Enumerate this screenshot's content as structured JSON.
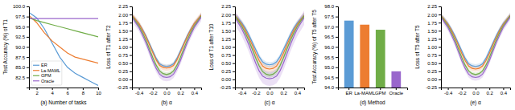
{
  "chart_data": [
    {
      "type": "line",
      "xlabel": "(a) Number of tasks",
      "ylabel": "Test Accuracy (%) of T1",
      "x": [
        1,
        2,
        3,
        4,
        5,
        6,
        7,
        8,
        9,
        10
      ],
      "xlim": [
        1,
        10
      ],
      "ylim": [
        80.0,
        100.0
      ],
      "xticks": [
        2,
        4,
        6,
        8,
        10
      ],
      "yticks": [
        82.5,
        {
          "value": 85.0,
          "label": "85.0"
        },
        87.5,
        {
          "value": 90.0,
          "label": "90.0"
        },
        92.5,
        {
          "value": 95.0,
          "label": "95.0"
        },
        97.5,
        {
          "value": 100.0,
          "label": "100.0"
        }
      ],
      "legend": "lower left",
      "series": [
        {
          "name": "ER",
          "color": "#5B9BD5",
          "values": [
            98.5,
            97.2,
            94.5,
            91.0,
            87.5,
            85.0,
            83.5,
            82.5,
            81.5,
            80.5
          ]
        },
        {
          "name": "La-MAML",
          "color": "#ED7D31",
          "values": [
            97.8,
            96.0,
            93.5,
            91.5,
            90.0,
            88.5,
            87.5,
            87.0,
            86.5,
            86.0
          ]
        },
        {
          "name": "GPM",
          "color": "#70AD47",
          "values": [
            97.2,
            96.5,
            96.0,
            95.5,
            95.0,
            94.5,
            94.0,
            93.5,
            93.0,
            92.5
          ]
        },
        {
          "name": "Oracle",
          "color": "#9966CC",
          "values": [
            97.0,
            97.0,
            97.0,
            97.0,
            97.0,
            97.0,
            97.0,
            97.0,
            97.0,
            97.0
          ]
        }
      ]
    },
    {
      "type": "line",
      "xlabel": "(b) α",
      "ylabel": "Loss of T1 after T2",
      "x": [
        -0.5,
        -0.45,
        -0.4,
        -0.35,
        -0.3,
        -0.25,
        -0.2,
        -0.15,
        -0.1,
        -0.05,
        0.0,
        0.05,
        0.1,
        0.15,
        0.2,
        0.25,
        0.3,
        0.35,
        0.4,
        0.45,
        0.5
      ],
      "xlim": [
        -0.5,
        0.5
      ],
      "ylim": [
        -0.25,
        2.25
      ],
      "xticks": [
        -0.4,
        -0.2,
        {
          "value": 0.0,
          "label": "0.0"
        },
        0.2,
        0.4
      ],
      "yticks": [
        -0.25,
        {
          "value": 0.0,
          "label": "0.00"
        },
        0.25,
        {
          "value": 0.5,
          "label": "0.50"
        },
        0.75,
        {
          "value": 1.0,
          "label": "1.00"
        },
        1.25,
        {
          "value": 1.5,
          "label": "1.50"
        },
        1.75,
        {
          "value": 2.0,
          "label": "2.00"
        },
        2.25
      ],
      "series": [
        {
          "color": "#5B9BD5",
          "values": [
            1.98,
            1.85,
            1.72,
            1.55,
            1.35,
            1.12,
            0.88,
            0.65,
            0.48,
            0.42,
            0.4,
            0.42,
            0.48,
            0.65,
            0.88,
            1.12,
            1.35,
            1.55,
            1.72,
            1.85,
            1.98
          ],
          "std": [
            0.06,
            0.06,
            0.06,
            0.06,
            0.06,
            0.06,
            0.06,
            0.06,
            0.06,
            0.06,
            0.06,
            0.06,
            0.06,
            0.06,
            0.06,
            0.06,
            0.06,
            0.06,
            0.06,
            0.06,
            0.06
          ]
        },
        {
          "color": "#ED7D31",
          "values": [
            1.98,
            1.85,
            1.72,
            1.53,
            1.32,
            1.08,
            0.83,
            0.6,
            0.43,
            0.37,
            0.35,
            0.37,
            0.43,
            0.6,
            0.83,
            1.08,
            1.32,
            1.53,
            1.72,
            1.85,
            1.98
          ],
          "std": [
            0.09,
            0.09,
            0.09,
            0.09,
            0.09,
            0.09,
            0.09,
            0.09,
            0.09,
            0.09,
            0.09,
            0.09,
            0.09,
            0.09,
            0.09,
            0.09,
            0.09,
            0.09,
            0.09,
            0.09,
            0.09
          ]
        },
        {
          "color": "#70AD47",
          "values": [
            1.95,
            1.8,
            1.65,
            1.45,
            1.22,
            0.95,
            0.68,
            0.44,
            0.26,
            0.18,
            0.15,
            0.18,
            0.26,
            0.44,
            0.68,
            0.95,
            1.22,
            1.45,
            1.65,
            1.8,
            1.95
          ],
          "std": [
            0.07,
            0.07,
            0.07,
            0.07,
            0.07,
            0.07,
            0.07,
            0.07,
            0.07,
            0.07,
            0.07,
            0.07,
            0.07,
            0.07,
            0.07,
            0.07,
            0.07,
            0.07,
            0.07,
            0.07,
            0.07
          ]
        },
        {
          "color": "#9966CC",
          "values": [
            1.92,
            1.76,
            1.6,
            1.38,
            1.14,
            0.86,
            0.58,
            0.34,
            0.16,
            0.08,
            0.06,
            0.08,
            0.16,
            0.34,
            0.58,
            0.86,
            1.14,
            1.38,
            1.6,
            1.76,
            1.92
          ],
          "std": [
            0.12,
            0.12,
            0.12,
            0.12,
            0.12,
            0.12,
            0.12,
            0.12,
            0.12,
            0.12,
            0.12,
            0.12,
            0.12,
            0.12,
            0.12,
            0.12,
            0.12,
            0.12,
            0.12,
            0.12,
            0.12
          ]
        }
      ]
    },
    {
      "type": "line",
      "xlabel": "(c) α",
      "ylabel": "Loss of T1 after T10",
      "x": [
        -0.5,
        -0.45,
        -0.4,
        -0.35,
        -0.3,
        -0.25,
        -0.2,
        -0.15,
        -0.1,
        -0.05,
        0.0,
        0.05,
        0.1,
        0.15,
        0.2,
        0.25,
        0.3,
        0.35,
        0.4,
        0.45,
        0.5
      ],
      "xlim": [
        -0.5,
        0.5
      ],
      "ylim": [
        -0.25,
        2.25
      ],
      "xticks": [
        -0.4,
        -0.2,
        {
          "value": 0.0,
          "label": "0.0"
        },
        0.2,
        0.4
      ],
      "yticks": [
        -0.25,
        {
          "value": 0.0,
          "label": "0.00"
        },
        0.25,
        {
          "value": 0.5,
          "label": "0.50"
        },
        0.75,
        {
          "value": 1.0,
          "label": "1.00"
        },
        1.25,
        {
          "value": 1.5,
          "label": "1.50"
        },
        1.75,
        {
          "value": 2.0,
          "label": "2.00"
        },
        2.25
      ],
      "series": [
        {
          "color": "#5B9BD5",
          "values": [
            1.98,
            1.86,
            1.74,
            1.58,
            1.38,
            1.15,
            0.92,
            0.7,
            0.54,
            0.47,
            0.45,
            0.47,
            0.54,
            0.7,
            0.92,
            1.15,
            1.38,
            1.58,
            1.74,
            1.86,
            1.98
          ],
          "std": [
            0.08,
            0.08,
            0.08,
            0.08,
            0.08,
            0.08,
            0.08,
            0.08,
            0.08,
            0.08,
            0.08,
            0.08,
            0.08,
            0.08,
            0.08,
            0.08,
            0.08,
            0.08,
            0.08,
            0.08,
            0.08
          ]
        },
        {
          "color": "#ED7D31",
          "values": [
            1.97,
            1.84,
            1.7,
            1.52,
            1.3,
            1.06,
            0.8,
            0.58,
            0.41,
            0.34,
            0.32,
            0.34,
            0.41,
            0.58,
            0.8,
            1.06,
            1.3,
            1.52,
            1.7,
            1.84,
            1.97
          ],
          "std": [
            0.1,
            0.1,
            0.1,
            0.1,
            0.1,
            0.1,
            0.1,
            0.1,
            0.1,
            0.1,
            0.1,
            0.1,
            0.1,
            0.1,
            0.1,
            0.1,
            0.1,
            0.1,
            0.1,
            0.1,
            0.1
          ]
        },
        {
          "color": "#70AD47",
          "values": [
            1.95,
            1.8,
            1.63,
            1.43,
            1.2,
            0.93,
            0.66,
            0.42,
            0.24,
            0.16,
            0.13,
            0.16,
            0.24,
            0.42,
            0.66,
            0.93,
            1.2,
            1.43,
            1.63,
            1.8,
            1.95
          ],
          "std": [
            0.08,
            0.08,
            0.08,
            0.08,
            0.08,
            0.08,
            0.08,
            0.08,
            0.08,
            0.08,
            0.08,
            0.08,
            0.08,
            0.08,
            0.08,
            0.08,
            0.08,
            0.08,
            0.08,
            0.08,
            0.08
          ]
        },
        {
          "color": "#9966CC",
          "values": [
            1.9,
            1.73,
            1.55,
            1.32,
            1.07,
            0.78,
            0.5,
            0.26,
            0.1,
            0.04,
            0.02,
            0.04,
            0.1,
            0.26,
            0.5,
            0.78,
            1.07,
            1.32,
            1.55,
            1.73,
            1.9
          ],
          "std": [
            0.22,
            0.22,
            0.22,
            0.22,
            0.22,
            0.22,
            0.22,
            0.22,
            0.22,
            0.22,
            0.22,
            0.22,
            0.22,
            0.22,
            0.22,
            0.22,
            0.22,
            0.22,
            0.22,
            0.22,
            0.22
          ]
        }
      ]
    },
    {
      "type": "bar",
      "xlabel": "(d) Method",
      "ylabel": "Test Accuracy (%) of T5 after T5",
      "categories": [
        "ER",
        "La-MAML",
        "GPM",
        "Oracle"
      ],
      "values": [
        97.3,
        97.1,
        96.85,
        94.8
      ],
      "colors": [
        "#5B9BD5",
        "#ED7D31",
        "#70AD47",
        "#9966CC"
      ],
      "ylim": [
        94.0,
        98.0
      ],
      "yticks": [
        {
          "value": 94.0,
          "label": "94.0"
        },
        94.5,
        {
          "value": 95.0,
          "label": "95.0"
        },
        95.5,
        {
          "value": 96.0,
          "label": "96.0"
        },
        96.5,
        {
          "value": 97.0,
          "label": "97.0"
        },
        97.5,
        {
          "value": 98.0,
          "label": "98.0"
        }
      ]
    },
    {
      "type": "line",
      "xlabel": "(e) α",
      "ylabel": "Loss of T5 after T5",
      "x": [
        -0.5,
        -0.45,
        -0.4,
        -0.35,
        -0.3,
        -0.25,
        -0.2,
        -0.15,
        -0.1,
        -0.05,
        0.0,
        0.05,
        0.1,
        0.15,
        0.2,
        0.25,
        0.3,
        0.35,
        0.4,
        0.45,
        0.5
      ],
      "xlim": [
        -0.5,
        0.5
      ],
      "ylim": [
        -0.25,
        2.25
      ],
      "xticks": [
        -0.4,
        -0.2,
        {
          "value": 0.0,
          "label": "0.0"
        },
        0.2,
        0.4
      ],
      "yticks": [
        -0.25,
        {
          "value": 0.0,
          "label": "0.00"
        },
        0.25,
        {
          "value": 0.5,
          "label": "0.50"
        },
        0.75,
        {
          "value": 1.0,
          "label": "1.00"
        },
        1.25,
        {
          "value": 1.5,
          "label": "1.50"
        },
        1.75,
        {
          "value": 2.0,
          "label": "2.00"
        },
        2.25
      ],
      "series": [
        {
          "color": "#5B9BD5",
          "values": [
            1.98,
            1.85,
            1.72,
            1.55,
            1.35,
            1.12,
            0.88,
            0.65,
            0.48,
            0.42,
            0.4,
            0.42,
            0.48,
            0.65,
            0.88,
            1.12,
            1.35,
            1.55,
            1.72,
            1.85,
            1.98
          ],
          "std": [
            0.07,
            0.07,
            0.07,
            0.07,
            0.07,
            0.07,
            0.07,
            0.07,
            0.07,
            0.07,
            0.07,
            0.07,
            0.07,
            0.07,
            0.07,
            0.07,
            0.07,
            0.07,
            0.07,
            0.07,
            0.07
          ]
        },
        {
          "color": "#ED7D31",
          "values": [
            1.97,
            1.84,
            1.7,
            1.52,
            1.3,
            1.06,
            0.8,
            0.58,
            0.41,
            0.34,
            0.32,
            0.34,
            0.41,
            0.58,
            0.8,
            1.06,
            1.3,
            1.52,
            1.7,
            1.84,
            1.97
          ],
          "std": [
            0.08,
            0.08,
            0.08,
            0.08,
            0.08,
            0.08,
            0.08,
            0.08,
            0.08,
            0.08,
            0.08,
            0.08,
            0.08,
            0.08,
            0.08,
            0.08,
            0.08,
            0.08,
            0.08,
            0.08,
            0.08
          ]
        },
        {
          "color": "#70AD47",
          "values": [
            1.95,
            1.8,
            1.65,
            1.45,
            1.22,
            0.95,
            0.68,
            0.44,
            0.26,
            0.18,
            0.15,
            0.18,
            0.26,
            0.44,
            0.68,
            0.95,
            1.22,
            1.45,
            1.65,
            1.8,
            1.95
          ],
          "std": [
            0.06,
            0.06,
            0.06,
            0.06,
            0.06,
            0.06,
            0.06,
            0.06,
            0.06,
            0.06,
            0.06,
            0.06,
            0.06,
            0.06,
            0.06,
            0.06,
            0.06,
            0.06,
            0.06,
            0.06,
            0.06
          ]
        },
        {
          "color": "#9966CC",
          "values": [
            1.92,
            1.76,
            1.6,
            1.38,
            1.14,
            0.86,
            0.58,
            0.34,
            0.16,
            0.08,
            0.06,
            0.08,
            0.16,
            0.34,
            0.58,
            0.86,
            1.14,
            1.38,
            1.6,
            1.76,
            1.92
          ],
          "std": [
            0.1,
            0.1,
            0.1,
            0.1,
            0.1,
            0.1,
            0.1,
            0.1,
            0.1,
            0.1,
            0.1,
            0.1,
            0.1,
            0.1,
            0.1,
            0.1,
            0.1,
            0.1,
            0.1,
            0.1,
            0.1
          ]
        }
      ]
    }
  ]
}
